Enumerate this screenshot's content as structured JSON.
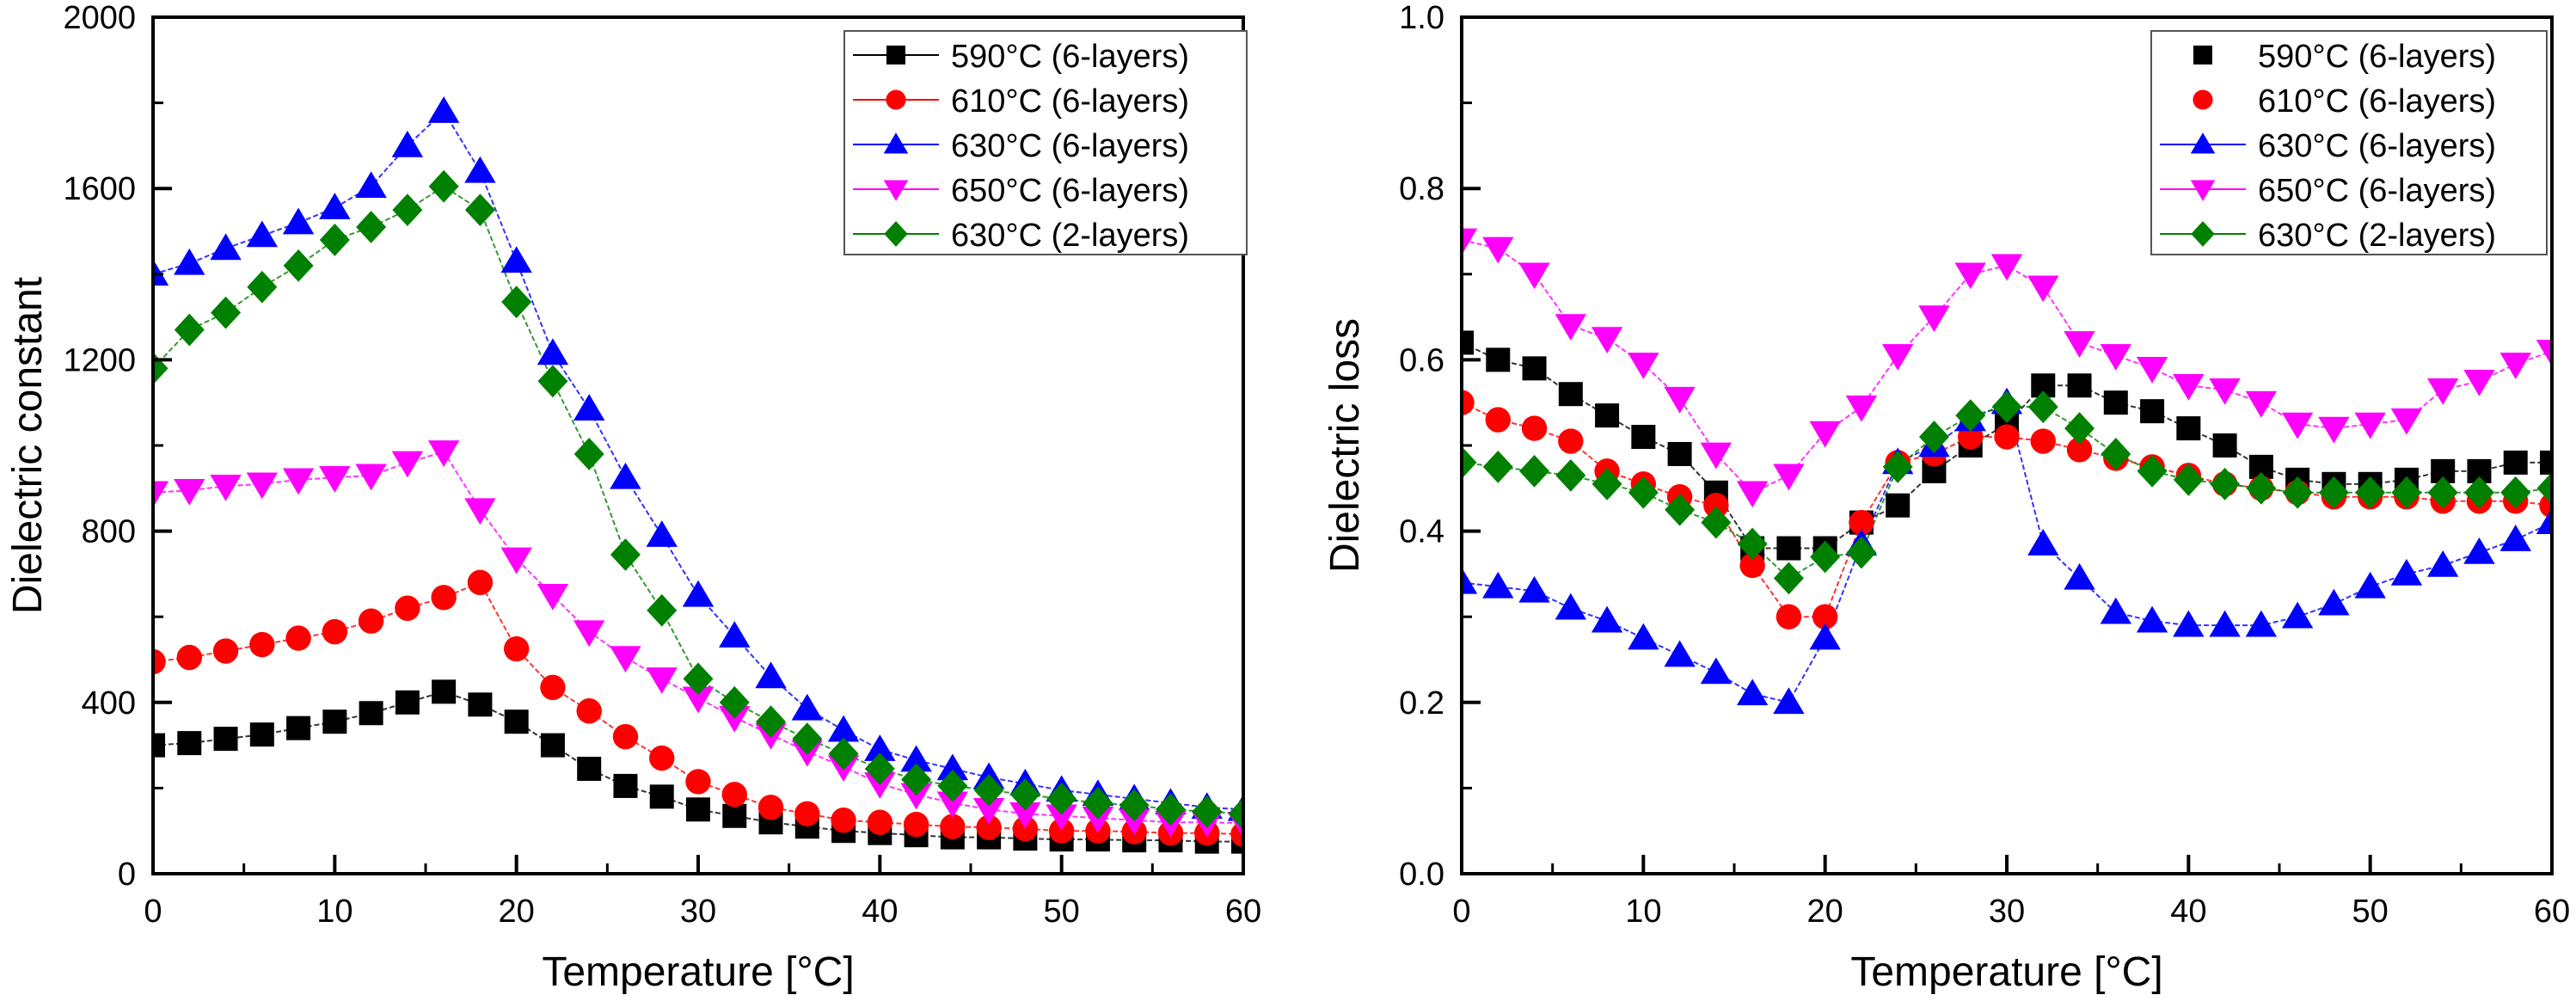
{
  "chart_data": [
    {
      "type": "line",
      "title": "",
      "xlabel": "Temperature [°C]",
      "ylabel": "Dielectric constant",
      "xlim": [
        0,
        60
      ],
      "ylim": [
        0,
        2000
      ],
      "x_ticks": [
        "0",
        "10",
        "20",
        "30",
        "40",
        "50",
        "60"
      ],
      "y_ticks": [
        "0",
        "400",
        "800",
        "1200",
        "1600",
        "2000"
      ],
      "grid": false,
      "legend_position": "top-right",
      "x": [
        0,
        2,
        4,
        6,
        8,
        10,
        12,
        14,
        16,
        18,
        20,
        22,
        24,
        26,
        28,
        30,
        32,
        34,
        36,
        38,
        40,
        42,
        44,
        46,
        48,
        50,
        52,
        54,
        56,
        58,
        60
      ],
      "series": [
        {
          "name": "590°C (6-layers)",
          "color": "#000000",
          "marker": "square",
          "values": [
            300,
            305,
            315,
            325,
            340,
            355,
            375,
            400,
            425,
            395,
            355,
            300,
            245,
            205,
            180,
            150,
            135,
            120,
            110,
            100,
            95,
            90,
            85,
            85,
            82,
            80,
            80,
            78,
            78,
            75,
            75
          ]
        },
        {
          "name": "610°C (6-layers)",
          "color": "#ff0000",
          "marker": "circle",
          "values": [
            495,
            505,
            520,
            535,
            550,
            565,
            590,
            620,
            645,
            680,
            525,
            435,
            380,
            320,
            270,
            215,
            185,
            155,
            140,
            125,
            120,
            115,
            110,
            108,
            105,
            100,
            100,
            98,
            95,
            95,
            92
          ]
        },
        {
          "name": "630°C (6-layers)",
          "color": "#0000ff",
          "marker": "triangle-up",
          "values": [
            1400,
            1425,
            1460,
            1490,
            1520,
            1555,
            1605,
            1700,
            1780,
            1640,
            1430,
            1215,
            1085,
            925,
            790,
            650,
            555,
            460,
            385,
            335,
            290,
            265,
            245,
            225,
            210,
            195,
            185,
            175,
            165,
            155,
            150
          ]
        },
        {
          "name": "650°C (6-layers)",
          "color": "#ff00ff",
          "marker": "triangle-down",
          "values": [
            890,
            895,
            905,
            910,
            920,
            925,
            930,
            960,
            985,
            850,
            735,
            650,
            565,
            505,
            455,
            410,
            365,
            325,
            285,
            250,
            210,
            185,
            165,
            150,
            140,
            135,
            130,
            125,
            120,
            120,
            118
          ]
        },
        {
          "name": "630°C (2-layers)",
          "color": "#008000",
          "marker": "diamond",
          "values": [
            1180,
            1270,
            1310,
            1370,
            1420,
            1480,
            1510,
            1550,
            1605,
            1550,
            1335,
            1150,
            980,
            745,
            615,
            455,
            400,
            355,
            315,
            280,
            245,
            220,
            205,
            195,
            185,
            175,
            165,
            160,
            150,
            145,
            140
          ]
        }
      ]
    },
    {
      "type": "line",
      "title": "",
      "xlabel": "Temperature [°C]",
      "ylabel": "Dielectric loss",
      "xlim": [
        0,
        60
      ],
      "ylim": [
        0.0,
        1.0
      ],
      "x_ticks": [
        "0",
        "10",
        "20",
        "30",
        "40",
        "50",
        "60"
      ],
      "y_ticks": [
        "0.0",
        "0.2",
        "0.4",
        "0.6",
        "0.8",
        "1.0"
      ],
      "grid": false,
      "legend_position": "top-right",
      "x": [
        0,
        2,
        4,
        6,
        8,
        10,
        12,
        14,
        16,
        18,
        20,
        22,
        24,
        26,
        28,
        30,
        32,
        34,
        36,
        38,
        40,
        42,
        44,
        46,
        48,
        50,
        52,
        54,
        56,
        58,
        60
      ],
      "series": [
        {
          "name": "590°C (6-layers)",
          "color": "#000000",
          "marker": "square",
          "values": [
            0.62,
            0.6,
            0.59,
            0.56,
            0.535,
            0.51,
            0.49,
            0.445,
            0.38,
            0.38,
            0.38,
            0.41,
            0.43,
            0.47,
            0.5,
            0.525,
            0.57,
            0.57,
            0.55,
            0.54,
            0.52,
            0.5,
            0.475,
            0.46,
            0.455,
            0.455,
            0.46,
            0.47,
            0.47,
            0.48,
            0.48
          ]
        },
        {
          "name": "610°C (6-layers)",
          "color": "#ff0000",
          "marker": "circle",
          "values": [
            0.55,
            0.53,
            0.52,
            0.505,
            0.47,
            0.455,
            0.44,
            0.43,
            0.36,
            0.3,
            0.3,
            0.41,
            0.48,
            0.49,
            0.51,
            0.51,
            0.505,
            0.495,
            0.485,
            0.475,
            0.465,
            0.455,
            0.45,
            0.445,
            0.44,
            0.44,
            0.44,
            0.435,
            0.435,
            0.435,
            0.43
          ]
        },
        {
          "name": "630°C (6-layers)",
          "color": "#0000ff",
          "marker": "triangle-up",
          "values": [
            0.34,
            0.335,
            0.33,
            0.31,
            0.295,
            0.275,
            0.255,
            0.235,
            0.21,
            0.2,
            0.275,
            0.385,
            0.48,
            0.5,
            0.53,
            0.55,
            0.385,
            0.345,
            0.305,
            0.295,
            0.29,
            0.29,
            0.29,
            0.3,
            0.315,
            0.335,
            0.35,
            0.36,
            0.375,
            0.39,
            0.41
          ]
        },
        {
          "name": "650°C (6-layers)",
          "color": "#ff00ff",
          "marker": "triangle-down",
          "values": [
            0.74,
            0.73,
            0.7,
            0.64,
            0.625,
            0.595,
            0.555,
            0.49,
            0.445,
            0.465,
            0.515,
            0.545,
            0.605,
            0.65,
            0.7,
            0.71,
            0.685,
            0.62,
            0.605,
            0.59,
            0.57,
            0.565,
            0.55,
            0.525,
            0.52,
            0.525,
            0.53,
            0.565,
            0.575,
            0.595,
            0.61
          ]
        },
        {
          "name": "630°C (2-layers)",
          "color": "#008000",
          "marker": "diamond",
          "values": [
            0.48,
            0.475,
            0.47,
            0.465,
            0.455,
            0.445,
            0.425,
            0.41,
            0.385,
            0.345,
            0.37,
            0.375,
            0.475,
            0.51,
            0.535,
            0.545,
            0.545,
            0.52,
            0.49,
            0.47,
            0.46,
            0.455,
            0.45,
            0.445,
            0.445,
            0.445,
            0.445,
            0.445,
            0.445,
            0.445,
            0.45
          ]
        }
      ]
    }
  ]
}
